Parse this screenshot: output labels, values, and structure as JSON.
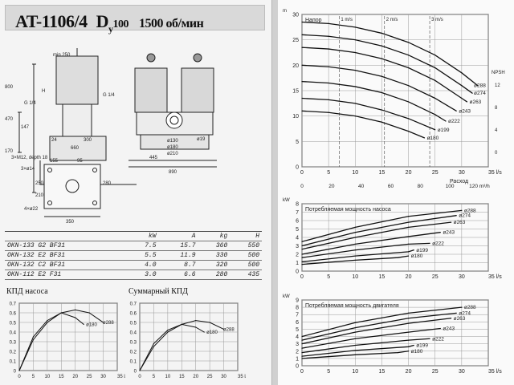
{
  "header": {
    "model": "AT-1106/4",
    "dn_prefix": "D",
    "dn_sub": "y",
    "dn_value": "100",
    "speed": "1500 об/мин"
  },
  "drawing": {
    "dims": [
      "min 250",
      "800",
      "470",
      "147",
      "170",
      "H",
      "G 1/4",
      "G 1/4",
      "24",
      "300",
      "660",
      "ø19",
      "ø130",
      "ø180",
      "ø210",
      "445",
      "890",
      "3×M12, depth 18",
      "3×ø14",
      "155",
      "95",
      "250",
      "280",
      "210",
      "4×ø22",
      "350"
    ]
  },
  "table": {
    "headers": [
      "",
      "kW",
      "A",
      "kg",
      "H"
    ],
    "rows": [
      [
        "OKN-133 G2 BF31",
        "7.5",
        "15.7",
        "360",
        "550"
      ],
      [
        "OKN-132 E2 BF31",
        "5.5",
        "11.9",
        "330",
        "500"
      ],
      [
        "OKN-132 C2 BF31",
        "4.0",
        "8.7",
        "320",
        "500"
      ],
      [
        "OKN-112 E2 F31",
        "3.0",
        "6.6",
        "280",
        "435"
      ]
    ]
  },
  "eff_label": "КПД насоса",
  "total_eff_label": "Суммарный КПД",
  "colors": {
    "curve": "#111111",
    "grid": "#999999"
  },
  "chart_data": [
    {
      "type": "line",
      "title": "Напор",
      "xlabel": "Расход",
      "x_unit": "l/s",
      "y_unit": "m",
      "xlim": [
        0,
        35
      ],
      "ylim": [
        0,
        30
      ],
      "x_ticks": [
        "0",
        "5",
        "10",
        "15",
        "20",
        "25",
        "30",
        "35 l/s"
      ],
      "y_ticks": [
        "0",
        "5",
        "10",
        "15",
        "20",
        "25",
        "30"
      ],
      "x2_ticks": [
        "0",
        "20",
        "40",
        "60",
        "80",
        "100",
        "120 m³/h"
      ],
      "npsh_label": "NPSH",
      "npsh_ticks": [
        "12",
        "8",
        "4",
        "0"
      ],
      "velocity_labels": [
        "1 m/s",
        "2 m/s",
        "3 m/s"
      ],
      "velocity_x": [
        7,
        15.5,
        24
      ],
      "series": [
        {
          "name": "ø288",
          "x": [
            0,
            5,
            10,
            15,
            20,
            25,
            30,
            33
          ],
          "y": [
            28.5,
            28.2,
            27.5,
            26.3,
            24.5,
            22,
            18.5,
            16
          ]
        },
        {
          "name": "ø274",
          "x": [
            0,
            5,
            10,
            15,
            20,
            25,
            30,
            32
          ],
          "y": [
            26,
            25.7,
            25,
            23.8,
            22,
            19.5,
            16,
            14.5
          ]
        },
        {
          "name": "ø263",
          "x": [
            0,
            5,
            10,
            15,
            20,
            25,
            30,
            31
          ],
          "y": [
            23.5,
            23.2,
            22.5,
            21.3,
            19.5,
            17,
            13.5,
            12.8
          ]
        },
        {
          "name": "ø243",
          "x": [
            0,
            5,
            10,
            15,
            20,
            25,
            29
          ],
          "y": [
            20,
            19.7,
            19,
            17.8,
            16,
            13.5,
            11
          ]
        },
        {
          "name": "ø222",
          "x": [
            0,
            5,
            10,
            15,
            20,
            25,
            27
          ],
          "y": [
            16.8,
            16.5,
            15.8,
            14.6,
            12.8,
            10.3,
            9
          ]
        },
        {
          "name": "ø199",
          "x": [
            0,
            5,
            10,
            15,
            20,
            25
          ],
          "y": [
            13.5,
            13.2,
            12.5,
            11.2,
            9.5,
            7.3
          ]
        },
        {
          "name": "ø180",
          "x": [
            0,
            5,
            10,
            15,
            20,
            23
          ],
          "y": [
            11,
            10.7,
            10,
            8.8,
            7,
            5.7
          ]
        }
      ]
    },
    {
      "type": "line",
      "title": "Потребляемая мощность насоса",
      "y_unit": "kW",
      "x_unit": "l/s",
      "xlim": [
        0,
        35
      ],
      "ylim": [
        0,
        8
      ],
      "x_ticks": [
        "0",
        "5",
        "10",
        "15",
        "20",
        "25",
        "30",
        "35 l/s"
      ],
      "y_ticks": [
        "0",
        "1",
        "2",
        "3",
        "4",
        "5",
        "6",
        "7",
        "8"
      ],
      "series": [
        {
          "name": "ø288",
          "x": [
            0,
            10,
            20,
            30
          ],
          "y": [
            3.5,
            5.2,
            6.5,
            7.2
          ]
        },
        {
          "name": "ø274",
          "x": [
            0,
            10,
            20,
            29
          ],
          "y": [
            3.0,
            4.6,
            5.8,
            6.6
          ]
        },
        {
          "name": "ø263",
          "x": [
            0,
            10,
            20,
            28
          ],
          "y": [
            2.6,
            4.0,
            5.2,
            5.8
          ]
        },
        {
          "name": "ø243",
          "x": [
            0,
            10,
            20,
            26
          ],
          "y": [
            2.0,
            3.2,
            4.1,
            4.6
          ]
        },
        {
          "name": "ø222",
          "x": [
            0,
            10,
            20,
            24
          ],
          "y": [
            1.6,
            2.5,
            3.2,
            3.3
          ]
        },
        {
          "name": "ø199",
          "x": [
            0,
            10,
            20,
            21
          ],
          "y": [
            1.1,
            1.8,
            2.3,
            2.5
          ]
        },
        {
          "name": "ø180",
          "x": [
            0,
            10,
            18,
            20
          ],
          "y": [
            0.8,
            1.3,
            1.6,
            1.8
          ]
        }
      ]
    },
    {
      "type": "line",
      "title": "Потребляемая мощность двигателя",
      "y_unit": "kW",
      "x_unit": "l/s",
      "xlim": [
        0,
        35
      ],
      "ylim": [
        0,
        9
      ],
      "x_ticks": [
        "0",
        "5",
        "10",
        "15",
        "20",
        "25",
        "30",
        "35 l/s"
      ],
      "y_ticks": [
        "0",
        "1",
        "2",
        "3",
        "4",
        "5",
        "6",
        "7",
        "8",
        "9"
      ],
      "series": [
        {
          "name": "ø288",
          "x": [
            0,
            10,
            20,
            30
          ],
          "y": [
            4.0,
            5.9,
            7.2,
            8.0
          ]
        },
        {
          "name": "ø274",
          "x": [
            0,
            10,
            20,
            29
          ],
          "y": [
            3.5,
            5.2,
            6.5,
            7.2
          ]
        },
        {
          "name": "ø263",
          "x": [
            0,
            10,
            20,
            28
          ],
          "y": [
            3.0,
            4.6,
            5.8,
            6.5
          ]
        },
        {
          "name": "ø243",
          "x": [
            0,
            10,
            20,
            26
          ],
          "y": [
            2.4,
            3.7,
            4.6,
            5.1
          ]
        },
        {
          "name": "ø222",
          "x": [
            0,
            10,
            20,
            24
          ],
          "y": [
            1.8,
            2.8,
            3.5,
            3.7
          ]
        },
        {
          "name": "ø199",
          "x": [
            0,
            10,
            20,
            21
          ],
          "y": [
            1.3,
            2.1,
            2.6,
            2.8
          ]
        },
        {
          "name": "ø180",
          "x": [
            0,
            10,
            18,
            20
          ],
          "y": [
            1.0,
            1.5,
            1.8,
            2.0
          ]
        }
      ]
    },
    {
      "type": "line",
      "title": "КПД насоса",
      "x_unit": "l/s",
      "xlim": [
        0,
        35
      ],
      "ylim": [
        0,
        0.7
      ],
      "x_ticks": [
        "0",
        "5",
        "10",
        "15",
        "20",
        "25",
        "30",
        "35 l/s"
      ],
      "y_ticks": [
        "0",
        "0.1",
        "0.2",
        "0.3",
        "0.4",
        "0.5",
        "0.6",
        "0.7"
      ],
      "series": [
        {
          "name": "ø288",
          "x": [
            0,
            5,
            10,
            15,
            20,
            25,
            30
          ],
          "y": [
            0,
            0.32,
            0.5,
            0.6,
            0.63,
            0.6,
            0.5
          ]
        },
        {
          "name": "ø180",
          "x": [
            0,
            5,
            10,
            15,
            20,
            23
          ],
          "y": [
            0,
            0.35,
            0.52,
            0.6,
            0.55,
            0.48
          ]
        }
      ]
    },
    {
      "type": "line",
      "title": "Суммарный КПД",
      "x_unit": "l/s",
      "xlim": [
        0,
        35
      ],
      "ylim": [
        0,
        0.7
      ],
      "x_ticks": [
        "0",
        "5",
        "10",
        "15",
        "20",
        "25",
        "30",
        "35 l/s"
      ],
      "y_ticks": [
        "0",
        "0.1",
        "0.2",
        "0.3",
        "0.4",
        "0.5",
        "0.6",
        "0.7"
      ],
      "series": [
        {
          "name": "ø288",
          "x": [
            0,
            5,
            10,
            15,
            20,
            25,
            30
          ],
          "y": [
            0,
            0.25,
            0.4,
            0.48,
            0.52,
            0.5,
            0.43
          ]
        },
        {
          "name": "ø180",
          "x": [
            0,
            5,
            10,
            15,
            20,
            23
          ],
          "y": [
            0,
            0.28,
            0.42,
            0.48,
            0.45,
            0.4
          ]
        }
      ]
    }
  ]
}
